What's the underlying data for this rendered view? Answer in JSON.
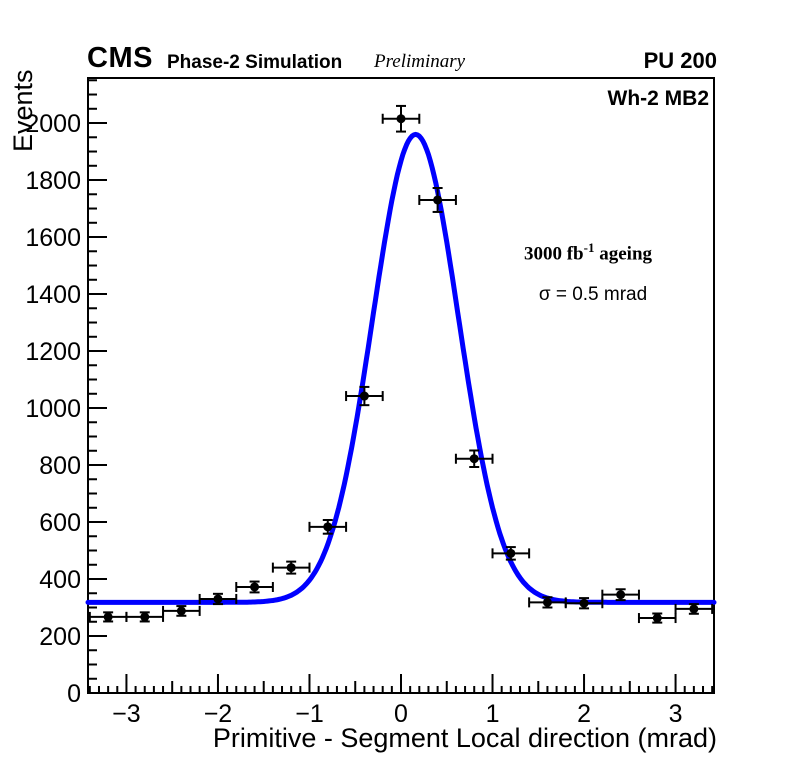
{
  "header": {
    "experiment": "CMS",
    "subtitle": "Phase-2 Simulation",
    "preliminary": "Preliminary",
    "pileup": "PU 200"
  },
  "plot_labels": {
    "region": "Wh-2 MB2"
  },
  "annotations": {
    "lumi_prefix": "3000 fb",
    "lumi_exponent": "-1",
    "lumi_suffix": " ageing",
    "sigma_text": "σ = 0.5 mrad"
  },
  "chart_data": {
    "type": "scatter",
    "title": "",
    "xlabel": "Primitive - Segment Local direction (mrad)",
    "ylabel": "Events",
    "xlim": [
      -3.42,
      3.42
    ],
    "ylim": [
      0,
      2158
    ],
    "grid": false,
    "legend": "none",
    "x_major_ticks": [
      -3,
      -2,
      -1,
      0,
      1,
      2,
      3
    ],
    "x_medium_tick_step": 0.5,
    "x_minor_tick_step": 0.1,
    "y_major_ticks": [
      0,
      200,
      400,
      600,
      800,
      1000,
      1200,
      1400,
      1600,
      1800,
      2000
    ],
    "y_minor_tick_step": 50,
    "bin_half_width": 0.2,
    "points": {
      "x": [
        -3.2,
        -2.8,
        -2.4,
        -2.0,
        -1.6,
        -1.2,
        -0.8,
        -0.4,
        0.0,
        0.4,
        0.8,
        1.2,
        1.6,
        2.0,
        2.4,
        2.8,
        3.2
      ],
      "y": [
        267,
        267,
        288,
        330,
        372,
        440,
        583,
        1042,
        2015,
        1730,
        822,
        490,
        318,
        315,
        345,
        263,
        295
      ],
      "yerr": [
        16,
        16,
        17,
        18,
        19,
        21,
        24,
        32,
        45,
        42,
        29,
        22,
        18,
        18,
        19,
        16,
        17
      ]
    },
    "fit": {
      "model": "gaussian_plus_constant",
      "constant": 318,
      "amplitude": 1642,
      "mean": 0.16,
      "sigma": 0.47,
      "color": "#0000ff",
      "line_width": 5
    },
    "marker": {
      "shape": "filled-circle",
      "color": "#000000",
      "radius": 4.5
    },
    "frame_color": "#000000",
    "background_color": "#ffffff"
  }
}
